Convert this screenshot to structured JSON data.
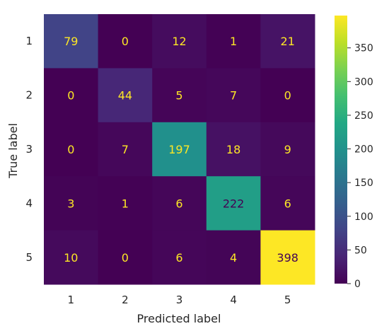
{
  "chart_data": {
    "type": "heatmap",
    "title": "",
    "xlabel": "Predicted label",
    "ylabel": "True label",
    "x_categories": [
      "1",
      "2",
      "3",
      "4",
      "5"
    ],
    "y_categories": [
      "1",
      "2",
      "3",
      "4",
      "5"
    ],
    "values": [
      [
        79,
        0,
        12,
        1,
        21
      ],
      [
        0,
        44,
        5,
        7,
        0
      ],
      [
        0,
        7,
        197,
        18,
        9
      ],
      [
        3,
        1,
        6,
        222,
        6
      ],
      [
        10,
        0,
        6,
        4,
        398
      ]
    ],
    "colormap": "viridis",
    "vmin": 0,
    "vmax": 398,
    "colorbar_ticks": [
      0,
      50,
      100,
      150,
      200,
      250,
      300,
      350
    ],
    "colorbar_tick_labels": [
      "0",
      "50",
      "100",
      "150",
      "200",
      "250",
      "300",
      "350"
    ],
    "text_color_light": "#fde725",
    "text_color_dark": "#440154",
    "grid": false
  }
}
